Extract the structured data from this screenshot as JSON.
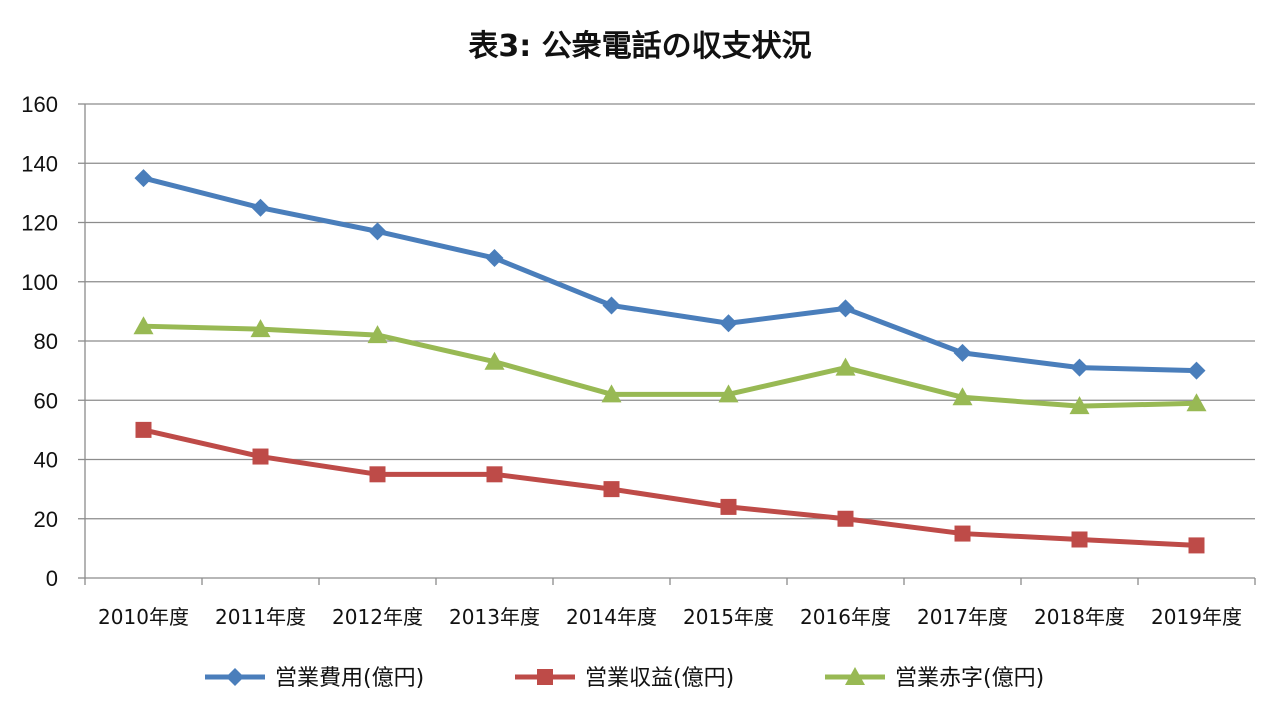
{
  "chart_data": {
    "type": "line",
    "title": "表3: 公衆電話の収支状況",
    "xlabel": "",
    "ylabel": "",
    "ylim": [
      0,
      160
    ],
    "ytick_step": 20,
    "grid": true,
    "legend_position": "bottom",
    "categories": [
      "2010年度",
      "2011年度",
      "2012年度",
      "2013年度",
      "2014年度",
      "2015年度",
      "2016年度",
      "2017年度",
      "2018年度",
      "2019年度"
    ],
    "series": [
      {
        "name": "営業費用(億円)",
        "marker": "diamond",
        "color": "#4a7ebb",
        "values": [
          135,
          125,
          117,
          108,
          92,
          86,
          91,
          76,
          71,
          70
        ]
      },
      {
        "name": "営業収益(億円)",
        "marker": "square",
        "color": "#be4b48",
        "values": [
          50,
          41,
          35,
          35,
          30,
          24,
          20,
          15,
          13,
          11
        ]
      },
      {
        "name": "営業赤字(億円)",
        "marker": "triangle",
        "color": "#98b954",
        "values": [
          85,
          84,
          82,
          73,
          62,
          62,
          71,
          61,
          58,
          59
        ]
      }
    ]
  }
}
